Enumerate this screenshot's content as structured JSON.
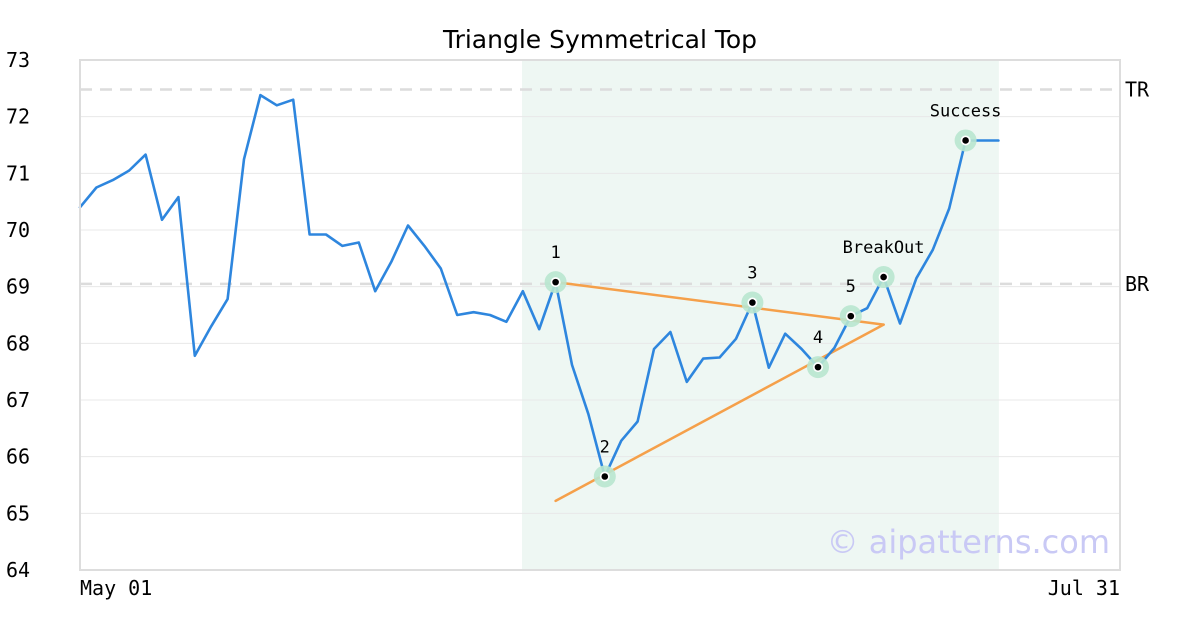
{
  "chart_data": {
    "type": "line",
    "title": "Triangle Symmetrical Top",
    "xlabel": "",
    "ylabel": "",
    "ylim": [
      64,
      73
    ],
    "yticks": [
      64,
      65,
      66,
      67,
      68,
      69,
      70,
      71,
      72,
      73
    ],
    "x_tick_labels": [
      "May 01",
      "Jul 31"
    ],
    "grid": "horizontal",
    "series": [
      {
        "color": "#2e86de",
        "values": [
          70.4,
          70.75,
          70.88,
          71.05,
          71.33,
          70.18,
          70.58,
          67.78,
          68.3,
          68.78,
          71.25,
          72.38,
          72.2,
          72.3,
          69.92,
          69.92,
          69.72,
          69.78,
          68.92,
          69.45,
          70.08,
          69.72,
          69.32,
          68.5,
          68.55,
          68.5,
          68.38,
          68.92,
          68.25,
          69.08,
          67.62,
          66.75,
          65.65,
          66.28,
          66.62,
          67.9,
          68.2,
          67.32,
          67.73,
          67.75,
          68.08,
          68.72,
          67.57,
          68.17,
          67.9,
          67.58,
          67.92,
          68.48,
          68.62,
          69.17,
          68.35,
          69.15,
          69.65,
          70.38,
          71.58,
          71.58,
          71.58
        ]
      }
    ],
    "highlight_range": {
      "from_index": 27,
      "to_index": 56,
      "color": "#eef7f3"
    },
    "levels": [
      {
        "label": "TR",
        "value": 72.48
      },
      {
        "label": "BR",
        "value": 69.05
      }
    ],
    "points": [
      {
        "label": "1",
        "index": 29,
        "value": 69.08
      },
      {
        "label": "2",
        "index": 32,
        "value": 65.65
      },
      {
        "label": "3",
        "index": 41,
        "value": 68.72
      },
      {
        "label": "4",
        "index": 45,
        "value": 67.58
      },
      {
        "label": "5",
        "index": 47,
        "value": 68.48
      },
      {
        "label": "BreakOut",
        "index": 49,
        "value": 69.17
      },
      {
        "label": "Success",
        "index": 54,
        "value": 71.58
      }
    ],
    "trendlines": [
      {
        "color": "#f5a04a",
        "from": [
          29,
          69.08
        ],
        "to": [
          49,
          68.33
        ]
      },
      {
        "color": "#f5a04a",
        "from": [
          29,
          65.22
        ],
        "to": [
          49,
          68.33
        ]
      }
    ],
    "watermark": "© aipatterns.com"
  }
}
